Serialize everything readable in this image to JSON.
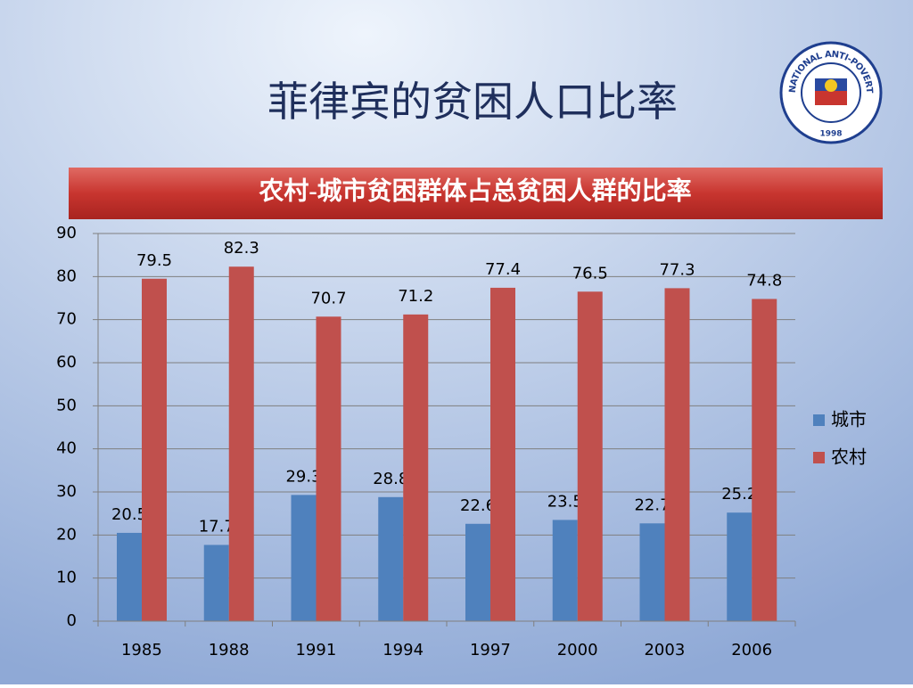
{
  "chart_data": {
    "type": "bar",
    "title": "菲律宾的贫困人口比率",
    "subtitle": "农村-城市贫困群体占总贫困人群的比率",
    "categories": [
      "1985",
      "1988",
      "1991",
      "1994",
      "1997",
      "2000",
      "2003",
      "2006"
    ],
    "series": [
      {
        "name": "城市",
        "color": "#4f81bd",
        "values": [
          20.5,
          17.7,
          29.3,
          28.8,
          22.6,
          23.5,
          22.7,
          25.2
        ]
      },
      {
        "name": "农村",
        "color": "#c0504d",
        "values": [
          79.5,
          82.3,
          70.7,
          71.2,
          77.4,
          76.5,
          77.3,
          74.8
        ]
      }
    ],
    "ylim": [
      0,
      90
    ],
    "yticks": [
      0,
      10,
      20,
      30,
      40,
      50,
      60,
      70,
      80,
      90
    ],
    "grid": true,
    "legend": "right"
  },
  "logo": {
    "text": "NATIONAL ANTI-POVERTY COMMISSION",
    "year": "1998"
  }
}
